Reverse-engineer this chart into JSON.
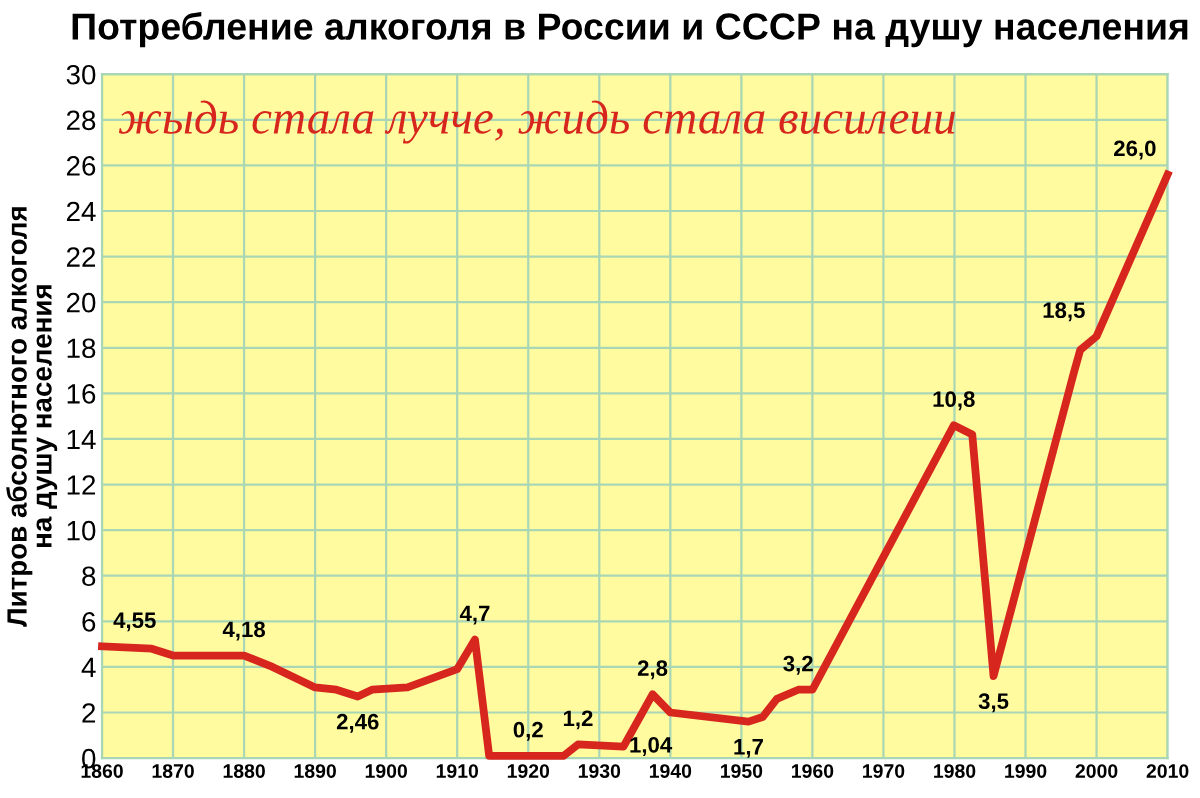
{
  "chart_data": {
    "type": "line",
    "title": "Потребление алкоголя в России и СССР на душу населения",
    "subtitle": "жыдь стала лучче, жидь стала висилеии",
    "ylabel": "Литров абсолютного алкоголя\nна душу населения",
    "series": [
      {
        "color": "#d7261e",
        "x": [
          1860,
          1867,
          1870,
          1880,
          1884,
          1890,
          1893,
          1896,
          1898,
          1903,
          1910,
          1912.5,
          1914.5,
          1925,
          1927,
          1933.4,
          1937.5,
          1940,
          1951,
          1953,
          1955,
          1958,
          1960,
          1979.9,
          1982.5,
          1985.5,
          1996.8,
          1997.7,
          2000,
          2010
        ],
        "values": [
          4.9,
          4.8,
          4.5,
          4.5,
          4.0,
          3.1,
          3.0,
          2.7,
          3.0,
          3.1,
          3.9,
          5.2,
          0.1,
          0.1,
          0.6,
          0.5,
          2.8,
          2.0,
          1.6,
          1.8,
          2.6,
          3.0,
          3.0,
          14.6,
          14.2,
          3.6,
          16.9,
          17.9,
          18.5,
          25.6
        ]
      }
    ],
    "annotations": [
      {
        "text": "4,55",
        "x": 1860,
        "y": 4.9
      },
      {
        "text": "4,18",
        "x": 1880,
        "y": 4.5
      },
      {
        "text": "2,46",
        "x": 1896,
        "y": 2.7
      },
      {
        "text": "4,7",
        "x": 1912.5,
        "y": 5.2
      },
      {
        "text": "0,2",
        "x": 1920,
        "y": 0.1
      },
      {
        "text": "1,2",
        "x": 1927,
        "y": 0.6
      },
      {
        "text": "1,04",
        "x": 1933.4,
        "y": 0.5
      },
      {
        "text": "2,8",
        "x": 1937.5,
        "y": 2.8
      },
      {
        "text": "1,7",
        "x": 1951,
        "y": 1.6
      },
      {
        "text": "3,2",
        "x": 1958,
        "y": 3.0
      },
      {
        "text": "3,5",
        "x": 1985.5,
        "y": 3.6
      },
      {
        "text": "10,8",
        "x": 1979.9,
        "y": 14.6
      },
      {
        "text": "18,5",
        "x": 2000,
        "y": 18.5
      },
      {
        "text": "26,0",
        "x": 2010,
        "y": 25.6
      }
    ],
    "xlim": [
      1860,
      2010
    ],
    "xticks": [
      1860,
      1870,
      1880,
      1890,
      1900,
      1910,
      1920,
      1930,
      1940,
      1950,
      1960,
      1970,
      1980,
      1990,
      2000,
      2010
    ],
    "ylim": [
      0,
      30
    ],
    "yticks": [
      0,
      2,
      4,
      6,
      8,
      10,
      12,
      14,
      16,
      18,
      20,
      22,
      24,
      26,
      28,
      30
    ],
    "grid": true,
    "legend": false,
    "marker": "none",
    "line_style": "solid"
  }
}
